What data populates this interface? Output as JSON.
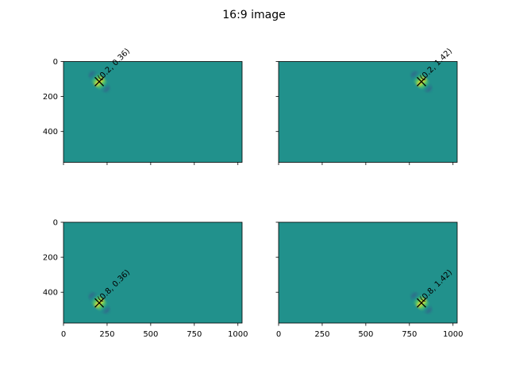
{
  "figure": {
    "title": "16:9 image"
  },
  "colors": {
    "background_field": "#21918c",
    "positive_lobe": "#fde725",
    "negative_lobe": "#3b528b",
    "marker": "#000000",
    "axes_edge": "#000000"
  },
  "chart_data": {
    "type": "heatmap",
    "title": "16:9 image",
    "image_shape": {
      "width": 1024,
      "height": 576
    },
    "sharex": true,
    "sharey": true,
    "y_inverted": true,
    "x_ticks": [
      0,
      250,
      500,
      750,
      1000
    ],
    "y_ticks": [
      0,
      200,
      400
    ],
    "xlim": [
      0,
      1024
    ],
    "ylim": [
      576,
      0
    ],
    "panels": [
      {
        "row": 0,
        "col": 0,
        "label": "(0.2, 0.36)",
        "x": 205,
        "y": 115,
        "show_xticklabels": false,
        "show_yticklabels": true
      },
      {
        "row": 0,
        "col": 1,
        "label": "(0.2, 1.42)",
        "x": 819,
        "y": 115,
        "show_xticklabels": false,
        "show_yticklabels": false
      },
      {
        "row": 1,
        "col": 0,
        "label": "(0.8, 0.36)",
        "x": 205,
        "y": 461,
        "show_xticklabels": true,
        "show_yticklabels": true
      },
      {
        "row": 1,
        "col": 1,
        "label": "(0.8, 1.42)",
        "x": 819,
        "y": 461,
        "show_xticklabels": true,
        "show_yticklabels": false
      }
    ]
  }
}
